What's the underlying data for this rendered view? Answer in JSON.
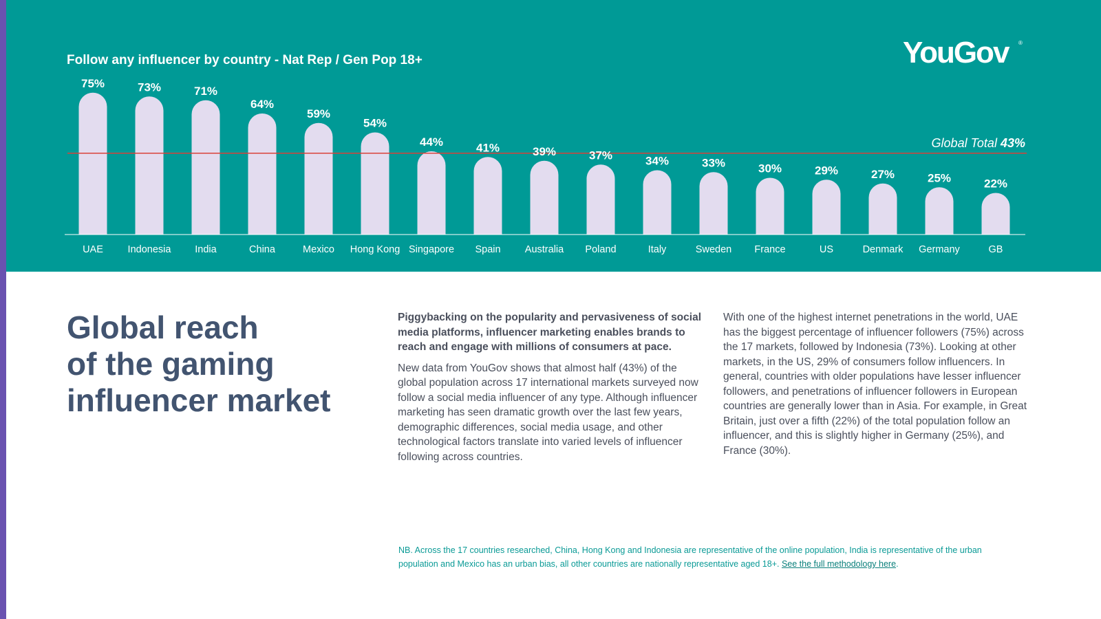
{
  "colors": {
    "accent_bar": "#6a52b0",
    "panel": "#009a96",
    "bar": "#e3dcef",
    "global_line": "#d9423a",
    "headline": "#425470",
    "body_text": "#4a4f5c",
    "footnote": "#0a9a96"
  },
  "brand": {
    "logo": "YouGov",
    "mark": "®"
  },
  "chart_data": {
    "type": "bar",
    "title": "Follow any influencer by country - Nat Rep / Gen Pop 18+",
    "categories": [
      "UAE",
      "Indonesia",
      "India",
      "China",
      "Mexico",
      "Hong Kong",
      "Singapore",
      "Spain",
      "Australia",
      "Poland",
      "Italy",
      "Sweden",
      "France",
      "US",
      "Denmark",
      "Germany",
      "GB"
    ],
    "values": [
      75,
      73,
      71,
      64,
      59,
      54,
      44,
      41,
      39,
      37,
      34,
      33,
      30,
      29,
      27,
      25,
      22
    ],
    "value_labels": [
      "75%",
      "73%",
      "71%",
      "64%",
      "59%",
      "54%",
      "44%",
      "41%",
      "39%",
      "37%",
      "34%",
      "33%",
      "30%",
      "29%",
      "27%",
      "25%",
      "22%"
    ],
    "unit": "%",
    "ylim": [
      0,
      80
    ],
    "grid": false,
    "reference_line": {
      "label": "Global Total",
      "value": 43,
      "value_label": "43%"
    }
  },
  "headline": [
    "Global reach",
    "of the gaming",
    "influencer market"
  ],
  "column_1": {
    "lead": "Piggybacking on the popularity and pervasiveness of social media platforms, influencer marketing enables brands to reach and engage with millions of consumers at pace.",
    "body": "New data from YouGov shows that almost half (43%) of the global population across 17 international markets surveyed now follow a social media influencer of any type. Although influencer marketing has seen dramatic growth over the last few years, demographic differences, social media usage, and other technological factors translate into varied levels of influencer following across countries."
  },
  "column_2": {
    "body": "With one of the highest internet penetrations in the world, UAE has the biggest percentage of influencer followers (75%) across the 17 markets, followed by Indonesia (73%). Looking at other markets, in the US, 29% of consumers follow influencers. In general, countries with older populations have lesser influencer followers, and penetrations of influencer followers in European countries are generally lower than in Asia. For example, in Great Britain, just over a fifth (22%) of the total population follow an influencer, and this is slightly higher in Germany (25%), and France (30%)."
  },
  "footnote": {
    "text": "NB. Across the 17 countries researched, China, Hong Kong and Indonesia are representative of the online population, India is representative of the urban population and Mexico has an urban bias, all other countries are nationally representative aged 18+. ",
    "link_label": "See the full methodology here",
    "suffix": "."
  }
}
